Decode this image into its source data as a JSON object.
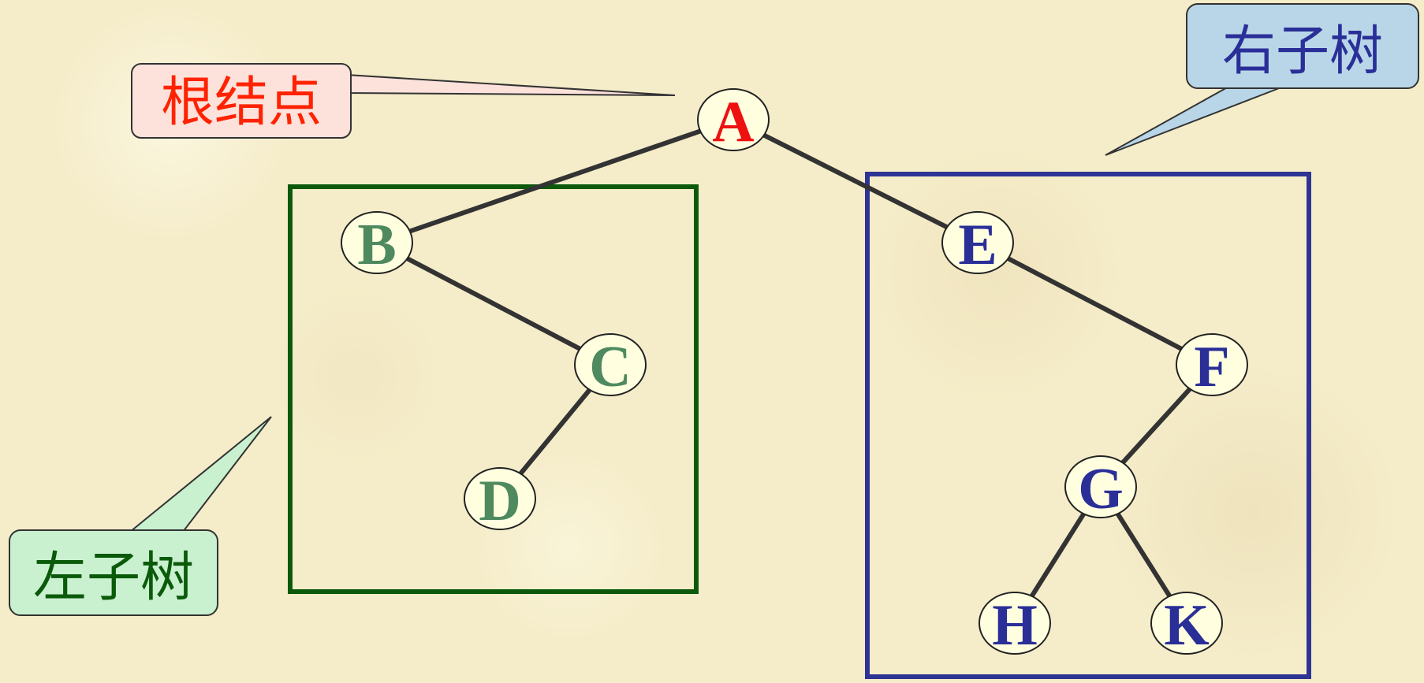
{
  "callouts": {
    "root": {
      "label": "根结点",
      "text_color": "#ff2200",
      "fill": "#fde2dc"
    },
    "left": {
      "label": "左子树",
      "text_color": "#0a5a0a",
      "fill": "#c9f0cf"
    },
    "right": {
      "label": "右子树",
      "text_color": "#2a2f98",
      "fill": "#b9d6e8"
    }
  },
  "tree": {
    "nodes": [
      {
        "id": "A",
        "label": "A",
        "color": "#ee1111"
      },
      {
        "id": "B",
        "label": "B",
        "color": "#4f8a5f"
      },
      {
        "id": "C",
        "label": "C",
        "color": "#4f8a5f"
      },
      {
        "id": "D",
        "label": "D",
        "color": "#4f8a5f"
      },
      {
        "id": "E",
        "label": "E",
        "color": "#2a2f98"
      },
      {
        "id": "F",
        "label": "F",
        "color": "#2a2f98"
      },
      {
        "id": "G",
        "label": "G",
        "color": "#2a2f98"
      },
      {
        "id": "H",
        "label": "H",
        "color": "#2a2f98"
      },
      {
        "id": "K",
        "label": "K",
        "color": "#2a2f98"
      }
    ],
    "edges": [
      [
        "A",
        "B"
      ],
      [
        "A",
        "E"
      ],
      [
        "B",
        "C"
      ],
      [
        "C",
        "D"
      ],
      [
        "E",
        "F"
      ],
      [
        "F",
        "G"
      ],
      [
        "G",
        "H"
      ],
      [
        "G",
        "K"
      ]
    ],
    "node_fill": "#ffffe0",
    "edge_color": "#333333"
  },
  "subtrees": {
    "left_box_color": "#0b5a0b",
    "right_box_color": "#2e3494"
  }
}
